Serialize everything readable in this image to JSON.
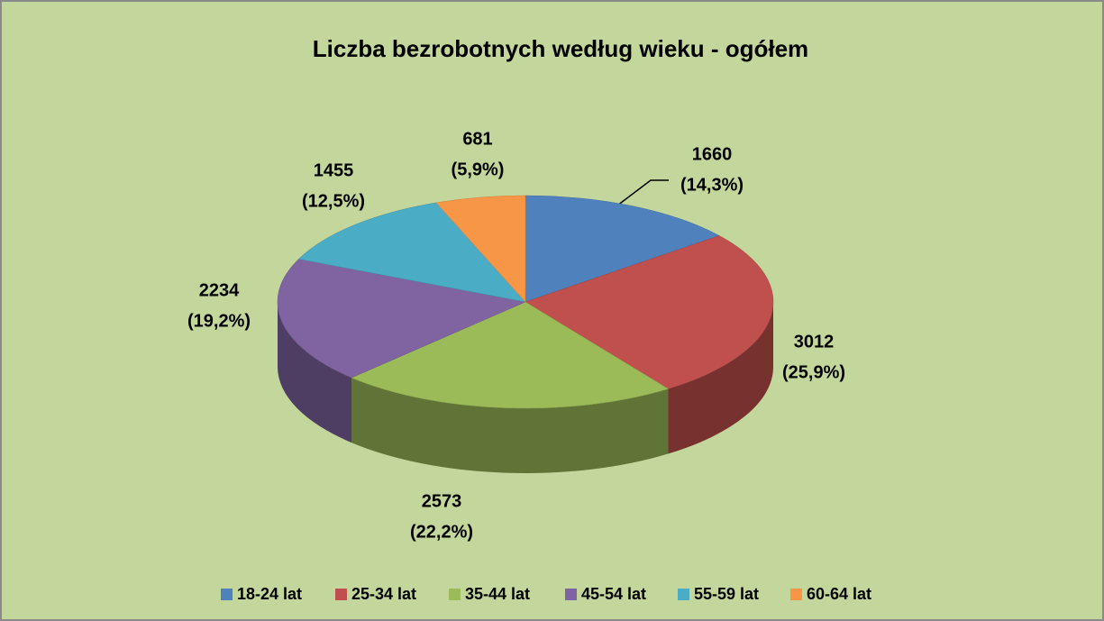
{
  "chart_data": {
    "type": "pie3d",
    "title": "Liczba bezrobotnych według wieku - ogółem",
    "categories": [
      "18-24 lat",
      "25-34 lat",
      "35-44 lat",
      "45-54 lat",
      "55-59 lat",
      "60-64 lat"
    ],
    "values": [
      1660,
      3012,
      2573,
      2234,
      1455,
      681
    ],
    "value_labels": [
      [
        "1660",
        "(14,3%)"
      ],
      [
        "3012",
        "(25,9%)"
      ],
      [
        "2573",
        "(22,2%)"
      ],
      [
        "2234",
        "(19,2%)"
      ],
      [
        "1455",
        "(12,5%)"
      ],
      [
        "681",
        "(5,9%)"
      ]
    ],
    "colors": [
      "#4f81bd",
      "#c0504d",
      "#9bbb59",
      "#8064a2",
      "#4bacc6",
      "#f79646"
    ],
    "legend": "bottom"
  }
}
